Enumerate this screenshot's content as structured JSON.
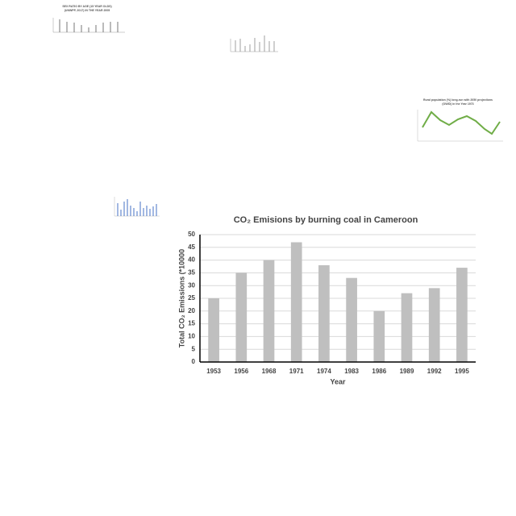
{
  "thumbnails": [
    {
      "title": "SEX RATIO BY AGE (15 YEAR OLDS)",
      "subtitle": "(UNWPP, 2017) IN THE YEAR 2005"
    },
    {
      "title": "Rural population (%) long-run with 2050 projections",
      "subtitle": "(OWID) in the Year 1973"
    }
  ],
  "chart_data": {
    "type": "bar",
    "title": "CO₂ Emisions by burning coal in Cameroon",
    "x_label": "Year",
    "y_label": "Total CO₂ Emissions (*10000",
    "categories": [
      "1953",
      "1956",
      "1968",
      "1971",
      "1974",
      "1983",
      "1986",
      "1989",
      "1992",
      "1995"
    ],
    "values": [
      25,
      35,
      40,
      47,
      38,
      33,
      20,
      27,
      29,
      37
    ],
    "color": "#bfbfbf",
    "ylim": [
      0,
      50
    ],
    "yticks": [
      0,
      5,
      10,
      15,
      20,
      25,
      30,
      35,
      40,
      45,
      50
    ],
    "grid": true
  }
}
